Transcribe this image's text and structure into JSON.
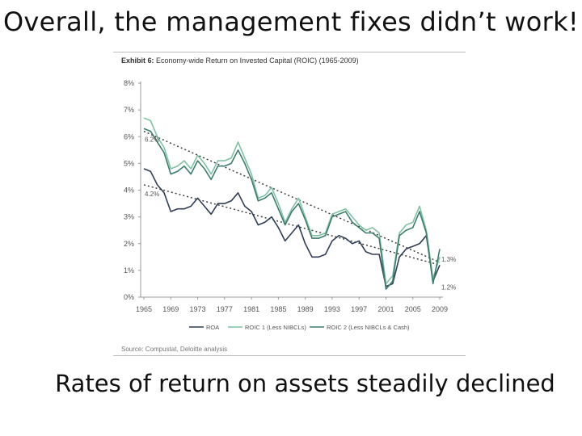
{
  "slide": {
    "title": "Overall, the management fixes didn’t work!",
    "caption": "Rates of return on assets steadily declined"
  },
  "exhibit": {
    "label": "Exhibit 6:",
    "title": "Economy-wide Return on Invested Capital (ROIC) (1965-2009)",
    "source": "Source: Compustat, Deloitte analysis"
  },
  "chart_data": {
    "type": "line",
    "title": "Exhibit 6: Economy-wide Return on Invested Capital (ROIC) (1965-2009)",
    "xlabel": "",
    "ylabel": "",
    "xlim": [
      1965,
      2009
    ],
    "ylim": [
      0,
      8
    ],
    "y_ticks": [
      "0%",
      "1%",
      "2%",
      "3%",
      "4%",
      "5%",
      "6%",
      "7%",
      "8%"
    ],
    "x_ticks": [
      1965,
      1969,
      1973,
      1977,
      1981,
      1985,
      1989,
      1993,
      1997,
      2001,
      2005,
      2009
    ],
    "grid": false,
    "legend_position": "bottom",
    "x": [
      1965,
      1966,
      1967,
      1968,
      1969,
      1970,
      1971,
      1972,
      1973,
      1974,
      1975,
      1976,
      1977,
      1978,
      1979,
      1980,
      1981,
      1982,
      1983,
      1984,
      1985,
      1986,
      1987,
      1988,
      1989,
      1990,
      1991,
      1992,
      1993,
      1994,
      1995,
      1996,
      1997,
      1998,
      1999,
      2000,
      2001,
      2002,
      2003,
      2004,
      2005,
      2006,
      2007,
      2008,
      2009
    ],
    "series": [
      {
        "name": "ROA",
        "color": "#2f3f57",
        "values": [
          4.8,
          4.7,
          4.2,
          3.9,
          3.2,
          3.3,
          3.3,
          3.4,
          3.7,
          3.4,
          3.1,
          3.5,
          3.5,
          3.6,
          3.9,
          3.4,
          3.2,
          2.7,
          2.8,
          3.0,
          2.6,
          2.1,
          2.4,
          2.7,
          2.0,
          1.5,
          1.5,
          1.6,
          2.1,
          2.3,
          2.2,
          2.0,
          2.1,
          1.7,
          1.6,
          1.6,
          0.4,
          0.5,
          1.5,
          1.8,
          1.9,
          2.0,
          2.3,
          0.6,
          1.2
        ]
      },
      {
        "name": "ROIC 1 (Less NIBCLs)",
        "color": "#7fc2a4",
        "values": [
          6.7,
          6.6,
          6.0,
          5.6,
          4.8,
          4.9,
          5.1,
          4.8,
          5.3,
          5.0,
          4.6,
          5.1,
          5.1,
          5.2,
          5.8,
          5.2,
          4.6,
          3.7,
          3.8,
          4.1,
          3.5,
          2.8,
          3.3,
          3.7,
          3.0,
          2.3,
          2.3,
          2.4,
          3.1,
          3.2,
          3.3,
          3.0,
          2.7,
          2.5,
          2.6,
          2.4,
          0.5,
          0.8,
          2.4,
          2.7,
          2.8,
          3.4,
          2.5,
          0.7,
          1.5
        ]
      },
      {
        "name": "ROIC 2 (Less NIBCLs & Cash)",
        "color": "#3d7d6e",
        "values": [
          6.3,
          6.2,
          5.8,
          5.4,
          4.6,
          4.7,
          4.9,
          4.6,
          5.1,
          4.8,
          4.4,
          4.9,
          4.9,
          5.0,
          5.5,
          5.0,
          4.4,
          3.6,
          3.7,
          3.9,
          3.3,
          2.7,
          3.2,
          3.5,
          2.9,
          2.2,
          2.2,
          2.3,
          3.0,
          3.1,
          3.2,
          2.8,
          2.6,
          2.4,
          2.4,
          2.2,
          0.3,
          0.6,
          2.3,
          2.5,
          2.6,
          3.2,
          2.4,
          0.5,
          1.8
        ]
      }
    ],
    "trendlines": [
      {
        "from": [
          1965,
          6.2
        ],
        "to": [
          2009,
          1.3
        ],
        "style": "dotted",
        "labels": [
          "6.2%",
          "1.3%"
        ]
      },
      {
        "from": [
          1965,
          4.2
        ],
        "to": [
          2009,
          1.2
        ],
        "style": "dotted",
        "labels": [
          "4.2%",
          "1.2%"
        ]
      }
    ]
  }
}
